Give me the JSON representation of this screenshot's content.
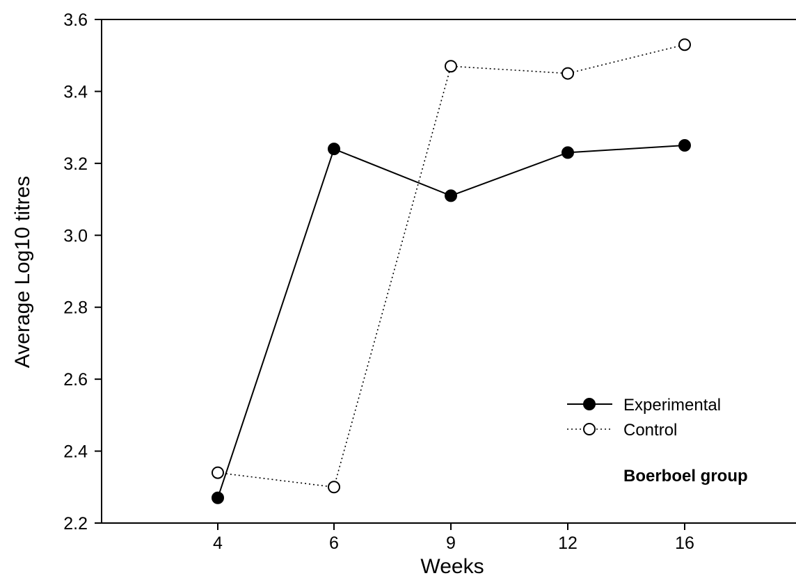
{
  "chart_data": {
    "type": "line",
    "title": "",
    "xlabel": "Weeks",
    "ylabel": "Average Log10 titres",
    "categories": [
      "4",
      "6",
      "9",
      "12",
      "16"
    ],
    "ylim": [
      2.2,
      3.6
    ],
    "yticks": [
      "2.2",
      "2.4",
      "2.6",
      "2.8",
      "3.0",
      "3.2",
      "3.4",
      "3.6"
    ],
    "grid": false,
    "legend_position": "lower-right",
    "annotation": "Boerboel group",
    "series": [
      {
        "name": "Experimental",
        "values": [
          2.27,
          3.24,
          3.11,
          3.23,
          3.25
        ],
        "line_style": "solid",
        "marker": "filled-circle",
        "color": "#000000"
      },
      {
        "name": "Control",
        "values": [
          2.34,
          2.3,
          3.47,
          3.45,
          3.53
        ],
        "line_style": "dotted",
        "marker": "open-circle",
        "color": "#000000"
      }
    ]
  }
}
